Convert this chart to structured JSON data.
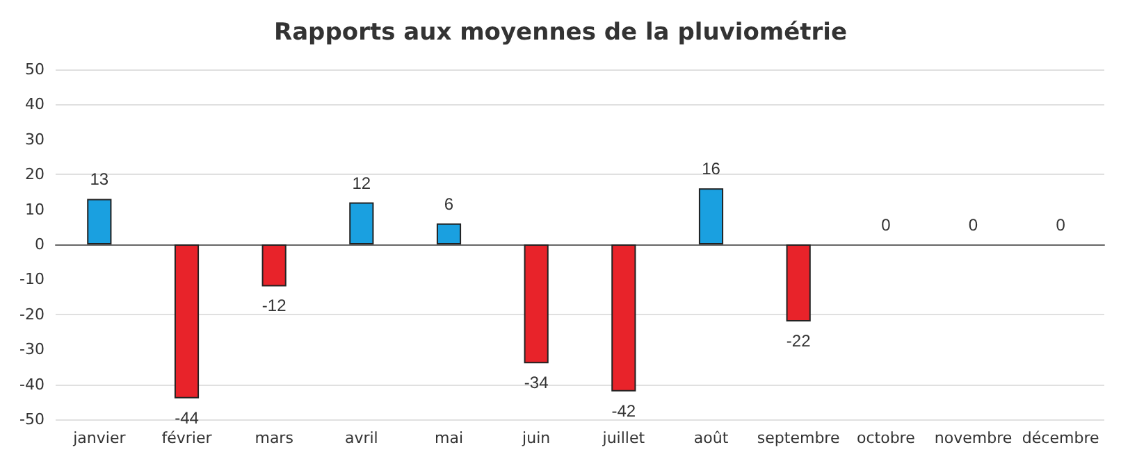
{
  "chart_data": {
    "type": "bar",
    "title": "Rapports aux moyennes de la pluviométrie",
    "categories": [
      "janvier",
      "février",
      "mars",
      "avril",
      "mai",
      "juin",
      "juillet",
      "août",
      "septembre",
      "octobre",
      "novembre",
      "décembre"
    ],
    "values": [
      13,
      -44,
      -12,
      12,
      6,
      -34,
      -42,
      16,
      -22,
      0,
      0,
      0
    ],
    "colors": [
      "#1aa0e0",
      "#e8232a",
      "#e8232a",
      "#1aa0e0",
      "#1aa0e0",
      "#e8232a",
      "#e8232a",
      "#1aa0e0",
      "#e8232a",
      "#1aa0e0",
      "#1aa0e0",
      "#1aa0e0"
    ],
    "ylim": [
      -50,
      50
    ],
    "yticks": [
      -50,
      -40,
      -30,
      -20,
      -10,
      0,
      10,
      20,
      30,
      40,
      50
    ],
    "grid": "y",
    "data_labels": true
  }
}
